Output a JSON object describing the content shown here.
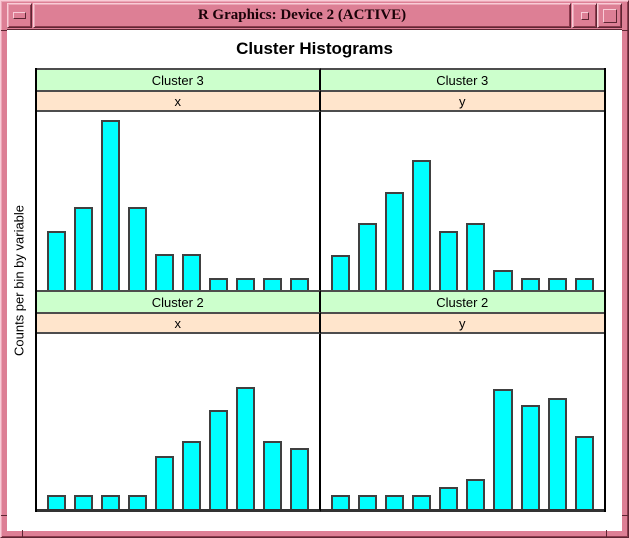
{
  "window": {
    "title": "R Graphics: Device 2 (ACTIVE)",
    "controls": {
      "left": "iconify-button",
      "right_small": "restore-button",
      "right_large": "maximize-button"
    },
    "frame_color": "#dd7f95",
    "frame_highlight": "#f9ccd7",
    "frame_shadow": "#5e2633"
  },
  "chart": {
    "title": "Cluster Histograms",
    "ylabel": "Counts per bin by variable"
  },
  "chart_data": {
    "type": "bar",
    "subtype": "lattice-histogram-grid",
    "title": "Cluster Histograms",
    "ylabel": "Counts per bin by variable",
    "xlabel": "",
    "axes": "no tick marks or numeric labels shown on any axis",
    "grid": "off",
    "bins_per_panel": 10,
    "bar_fill": "#00ffff",
    "bar_border": "#404040",
    "strip_colors": {
      "cluster_strip": "#ccffcc",
      "variable_strip": "#ffe5cc"
    },
    "layout": "2x2 panels; columns = variables (x, y), rows = clusters (Cluster 3 top, Cluster 2 bottom)",
    "panels": [
      {
        "position": "top-left",
        "cluster": "Cluster 3",
        "variable": "x",
        "approx_counts": [
          5,
          7,
          14,
          7,
          3,
          3,
          1,
          1,
          1,
          1
        ],
        "bin_heights_pct_of_panel": [
          33,
          46.5,
          95.5,
          46.5,
          20,
          20,
          6.7,
          6.7,
          6.7,
          6.7
        ]
      },
      {
        "position": "top-right",
        "cluster": "Cluster 3",
        "variable": "y",
        "approx_counts": [
          3,
          6,
          8,
          11,
          5,
          6,
          2,
          1,
          1,
          1
        ],
        "bin_heights_pct_of_panel": [
          19.7,
          37.6,
          55,
          73,
          33,
          37.6,
          11.2,
          6.7,
          6.7,
          6.7
        ]
      },
      {
        "position": "bottom-left",
        "cluster": "Cluster 2",
        "variable": "x",
        "approx_counts": [
          1,
          1,
          1,
          1,
          4,
          6,
          8,
          10,
          6,
          5
        ],
        "bin_heights_pct_of_panel": [
          7.9,
          7.9,
          7.9,
          7.9,
          30.3,
          38.8,
          56.7,
          69.7,
          38.8,
          34.8
        ]
      },
      {
        "position": "bottom-right",
        "cluster": "Cluster 2",
        "variable": "y",
        "approx_counts": [
          1,
          1,
          1,
          1,
          2,
          3,
          10,
          9,
          9,
          6
        ],
        "bin_heights_pct_of_panel": [
          7.9,
          7.9,
          7.9,
          7.9,
          12.4,
          16.9,
          68.5,
          59.6,
          63.5,
          41.6
        ]
      }
    ]
  }
}
